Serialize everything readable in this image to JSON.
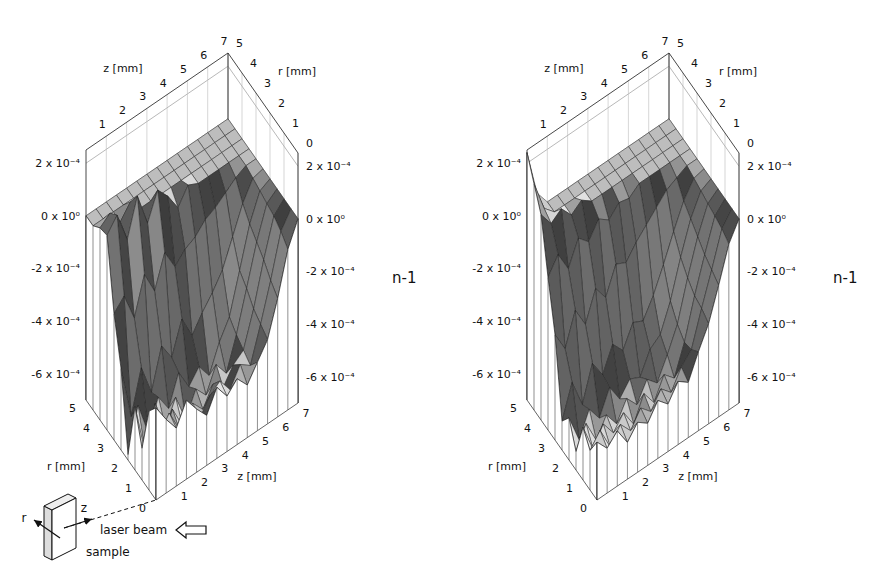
{
  "chart_data": [
    {
      "type": "surface",
      "x_label": "z [mm]",
      "y_label": "r [mm]",
      "z_label": "n-1",
      "x": [
        0,
        0.5,
        1,
        1.5,
        2,
        2.5,
        3,
        3.5,
        4,
        4.5,
        5,
        5.5,
        6,
        6.5,
        7
      ],
      "y": [
        0,
        0.5,
        1,
        1.5,
        2,
        2.5,
        3,
        3.5,
        4,
        4.5,
        5
      ],
      "xlim": [
        0,
        7
      ],
      "ylim": [
        0,
        5
      ],
      "zlim": [
        -0.0007,
        0.00025
      ],
      "xticks": [
        1,
        2,
        3,
        4,
        5,
        6,
        7
      ],
      "yticks": [
        0,
        1,
        2,
        3,
        4,
        5
      ],
      "zticks": [
        {
          "value": -0.0006,
          "label": "-6 x 10⁻⁴"
        },
        {
          "value": -0.0004,
          "label": "-4 x 10⁻⁴"
        },
        {
          "value": -0.0002,
          "label": "-2 x 10⁻⁴"
        },
        {
          "value": 0,
          "label": "0 x 10⁰"
        },
        {
          "value": 0.0002,
          "label": "2 x 10⁻⁴"
        }
      ],
      "grid": true,
      "values": [
        [
          -0.00035,
          -0.00042,
          -0.00048,
          -0.0004,
          -0.00046,
          -0.00051,
          -0.00043,
          -0.00049,
          -0.00045,
          -0.0005,
          -0.00044,
          -0.00038,
          -0.00025,
          -9e-05,
          0
        ],
        [
          -0.0004,
          -0.00052,
          -0.00046,
          -0.00055,
          -0.00048,
          -0.00056,
          -0.0005,
          -0.00047,
          -0.00053,
          -0.00046,
          -0.00049,
          -0.00036,
          -0.00022,
          -6e-05,
          0
        ],
        [
          -0.00058,
          -0.00049,
          -0.00063,
          -0.00051,
          -0.0006,
          -0.00054,
          -0.00059,
          -0.00052,
          -0.00056,
          -0.0005,
          -0.00047,
          -0.00034,
          -0.00018,
          -4e-05,
          0
        ],
        [
          -0.00046,
          -0.00066,
          -0.0005,
          -0.00062,
          -0.00053,
          -0.00064,
          -0.00055,
          -0.0006,
          -0.00051,
          -0.00057,
          -0.00045,
          -0.0003,
          -0.00015,
          -3e-05,
          0
        ],
        [
          -0.00068,
          -0.00052,
          -0.00065,
          -0.00054,
          -0.00061,
          -0.0005,
          -0.00058,
          -0.00053,
          -0.00059,
          -0.00049,
          -0.00042,
          -0.00027,
          -0.00012,
          -2e-05,
          0
        ],
        [
          -0.00039,
          -0.0006,
          -0.00044,
          -0.00056,
          -0.00041,
          -0.00048,
          -0.00036,
          -0.00045,
          -0.00039,
          -0.00034,
          -0.00028,
          -0.00018,
          -8e-05,
          -1e-05,
          0
        ],
        [
          -0.00022,
          -0.00018,
          -0.00029,
          -0.00015,
          -0.00024,
          -0.00012,
          -0.0002,
          -0.00016,
          -0.00014,
          -0.0001,
          -8e-05,
          -5e-05,
          -2e-05,
          0,
          0
        ],
        [
          4e-05,
          9e-05,
          -3e-05,
          0.00011,
          -2e-05,
          8e-05,
          3e-05,
          -4e-05,
          2e-05,
          0,
          0,
          0,
          0,
          0,
          0
        ],
        [
          3e-05,
          6e-05,
          0,
          5e-05,
          0,
          0,
          0,
          0,
          0,
          0,
          0,
          0,
          0,
          0,
          0
        ],
        [
          0,
          0,
          0,
          0,
          0,
          0,
          0,
          0,
          0,
          0,
          0,
          0,
          0,
          0,
          0
        ],
        [
          0,
          0,
          0,
          0,
          0,
          0,
          0,
          0,
          0,
          0,
          0,
          0,
          0,
          0,
          0
        ]
      ]
    },
    {
      "type": "surface",
      "x_label": "z [mm]",
      "y_label": "r [mm]",
      "z_label": "n-1",
      "x": [
        0,
        0.5,
        1,
        1.5,
        2,
        2.5,
        3,
        3.5,
        4,
        4.5,
        5,
        5.5,
        6,
        6.5,
        7
      ],
      "y": [
        0,
        0.5,
        1,
        1.5,
        2,
        2.5,
        3,
        3.5,
        4,
        4.5,
        5
      ],
      "xlim": [
        0,
        7
      ],
      "ylim": [
        0,
        5
      ],
      "zlim": [
        -0.0007,
        0.00025
      ],
      "xticks": [
        1,
        2,
        3,
        4,
        5,
        6,
        7
      ],
      "yticks": [
        0,
        1,
        2,
        3,
        4,
        5
      ],
      "zticks": [
        {
          "value": -0.0006,
          "label": "-6 x 10⁻⁴"
        },
        {
          "value": -0.0004,
          "label": "-4 x 10⁻⁴"
        },
        {
          "value": -0.0002,
          "label": "-2 x 10⁻⁴"
        },
        {
          "value": 0,
          "label": "0 x 10⁰"
        },
        {
          "value": 0.0002,
          "label": "2 x 10⁻⁴"
        }
      ],
      "grid": true,
      "values": [
        [
          -0.00048,
          -0.00053,
          -0.00049,
          -0.00056,
          -0.00051,
          -0.00054,
          -0.00048,
          -0.00052,
          -0.00046,
          -0.00049,
          -0.0004,
          -0.00032,
          -0.0002,
          -7e-05,
          0
        ],
        [
          -0.00055,
          -0.0005,
          -0.00059,
          -0.00053,
          -0.00058,
          -0.00052,
          -0.00056,
          -0.0005,
          -0.00054,
          -0.00047,
          -0.00043,
          -0.0003,
          -0.00018,
          -5e-05,
          0
        ],
        [
          -0.0005,
          -0.00061,
          -0.00054,
          -0.0006,
          -0.00055,
          -0.00062,
          -0.00053,
          -0.00059,
          -0.00051,
          -0.00055,
          -0.00044,
          -0.00029,
          -0.00016,
          -4e-05,
          0
        ],
        [
          -0.00063,
          -0.00055,
          -0.00064,
          -0.00057,
          -0.00063,
          -0.00056,
          -0.00061,
          -0.00054,
          -0.00058,
          -0.0005,
          -0.00041,
          -0.00026,
          -0.00013,
          -3e-05,
          0
        ],
        [
          -0.00054,
          -0.00065,
          -0.00056,
          -0.00062,
          -0.00053,
          -0.0006,
          -0.00055,
          -0.00057,
          -0.00049,
          -0.00046,
          -0.00036,
          -0.00022,
          -0.0001,
          -2e-05,
          0
        ],
        [
          -0.00059,
          -0.00047,
          -0.00058,
          -0.00045,
          -0.00052,
          -0.00043,
          -0.00048,
          -0.0004,
          -0.00042,
          -0.00035,
          -0.00026,
          -0.00016,
          -7e-05,
          -1e-05,
          0
        ],
        [
          -0.0003,
          -0.00038,
          -0.00026,
          -0.00034,
          -0.00023,
          -0.00029,
          -0.00019,
          -0.00021,
          -0.00016,
          -0.00012,
          -8e-05,
          -4e-05,
          -2e-05,
          0,
          0
        ],
        [
          -0.00012,
          -6e-05,
          -0.00014,
          -5e-05,
          -9e-05,
          -3e-05,
          -6e-05,
          -2e-05,
          -3e-05,
          0,
          0,
          0,
          0,
          0,
          0
        ],
        [
          8e-05,
          2e-05,
          5e-05,
          0,
          3e-05,
          0,
          0,
          0,
          0,
          0,
          0,
          0,
          0,
          0,
          0
        ],
        [
          0.00016,
          4e-05,
          0,
          0,
          0,
          0,
          0,
          0,
          0,
          0,
          0,
          0,
          0,
          0,
          0
        ],
        [
          0.00024,
          6e-05,
          0,
          0,
          0,
          0,
          0,
          0,
          0,
          0,
          0,
          0,
          0,
          0,
          0
        ]
      ]
    }
  ],
  "inset": {
    "beam": "laser beam",
    "sample": "sample",
    "r": "r",
    "z": "z"
  }
}
